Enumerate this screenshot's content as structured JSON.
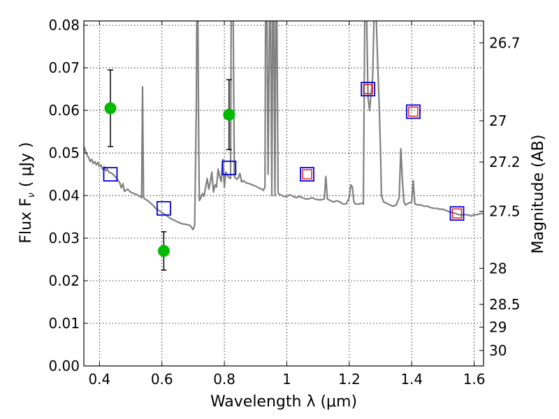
{
  "chart_data": {
    "type": "scatter",
    "xlabel": "Wavelength  λ (μm)",
    "ylabel": "Flux  F",
    "ylabel_sub": "ν",
    "ylabel_unit": "( μJy )",
    "y2label": "Magnitude (AB)",
    "xlim": [
      0.35,
      1.63
    ],
    "ylim": [
      0.0,
      0.081
    ],
    "x_ticks": [
      0.4,
      0.6,
      0.8,
      1.0,
      1.2,
      1.4,
      1.6
    ],
    "x_tick_labels": [
      "0.4",
      "0.6",
      "0.8",
      "1",
      "1.2",
      "1.4",
      "1.6"
    ],
    "y_ticks": [
      0.0,
      0.01,
      0.02,
      0.03,
      0.04,
      0.05,
      0.06,
      0.07,
      0.08
    ],
    "y_tick_labels": [
      "0.00",
      "0.01",
      "0.02",
      "0.03",
      "0.04",
      "0.05",
      "0.06",
      "0.07",
      "0.08"
    ],
    "y2_ticks": [
      {
        "mag": 26.7,
        "label": "26.7"
      },
      {
        "mag": 27.0,
        "label": "27"
      },
      {
        "mag": 27.2,
        "label": "27.2"
      },
      {
        "mag": 27.5,
        "label": "27.5"
      },
      {
        "mag": 28.0,
        "label": "28"
      },
      {
        "mag": 28.5,
        "label": "28.5"
      },
      {
        "mag": 29.0,
        "label": "29"
      },
      {
        "mag": 30.0,
        "label": "30"
      }
    ],
    "grid": true,
    "colors": {
      "spectrum": "#808080",
      "observed": "#00bb00",
      "model_box": "#0000dd",
      "model_inner": "#e02020",
      "error_bar": "#000000"
    },
    "series": [
      {
        "kind": "model_spectrum",
        "points": [
          [
            0.35,
            0.0515
          ],
          [
            0.355,
            0.0505
          ],
          [
            0.36,
            0.0495
          ],
          [
            0.365,
            0.049
          ],
          [
            0.37,
            0.048
          ],
          [
            0.375,
            0.0485
          ],
          [
            0.38,
            0.0475
          ],
          [
            0.385,
            0.048
          ],
          [
            0.39,
            0.0472
          ],
          [
            0.395,
            0.0478
          ],
          [
            0.4,
            0.0468
          ],
          [
            0.405,
            0.0472
          ],
          [
            0.41,
            0.0462
          ],
          [
            0.415,
            0.0468
          ],
          [
            0.42,
            0.0458
          ],
          [
            0.425,
            0.0462
          ],
          [
            0.43,
            0.0455
          ],
          [
            0.44,
            0.0452
          ],
          [
            0.45,
            0.0445
          ],
          [
            0.46,
            0.0435
          ],
          [
            0.465,
            0.043
          ],
          [
            0.47,
            0.0418
          ],
          [
            0.475,
            0.0428
          ],
          [
            0.48,
            0.041
          ],
          [
            0.49,
            0.0415
          ],
          [
            0.5,
            0.0408
          ],
          [
            0.51,
            0.0405
          ],
          [
            0.52,
            0.0402
          ],
          [
            0.53,
            0.0398
          ],
          [
            0.535,
            0.0395
          ],
          [
            0.538,
            0.0655
          ],
          [
            0.541,
            0.0395
          ],
          [
            0.55,
            0.039
          ],
          [
            0.56,
            0.0385
          ],
          [
            0.57,
            0.0378
          ],
          [
            0.58,
            0.037
          ],
          [
            0.59,
            0.0365
          ],
          [
            0.6,
            0.036
          ],
          [
            0.61,
            0.0355
          ],
          [
            0.62,
            0.035
          ],
          [
            0.63,
            0.0345
          ],
          [
            0.64,
            0.0342
          ],
          [
            0.65,
            0.0338
          ],
          [
            0.66,
            0.0335
          ],
          [
            0.67,
            0.0333
          ],
          [
            0.68,
            0.0332
          ],
          [
            0.69,
            0.033
          ],
          [
            0.7,
            0.032
          ],
          [
            0.705,
            0.033
          ],
          [
            0.71,
            0.06
          ],
          [
            0.712,
            0.085
          ],
          [
            0.715,
            0.085
          ],
          [
            0.718,
            0.05
          ],
          [
            0.72,
            0.0388
          ],
          [
            0.725,
            0.0395
          ],
          [
            0.73,
            0.0405
          ],
          [
            0.735,
            0.0398
          ],
          [
            0.74,
            0.042
          ],
          [
            0.745,
            0.044
          ],
          [
            0.75,
            0.0415
          ],
          [
            0.755,
            0.0432
          ],
          [
            0.76,
            0.0455
          ],
          [
            0.765,
            0.0408
          ],
          [
            0.77,
            0.0425
          ],
          [
            0.775,
            0.042
          ],
          [
            0.78,
            0.0462
          ],
          [
            0.785,
            0.0445
          ],
          [
            0.79,
            0.0433
          ],
          [
            0.795,
            0.0485
          ],
          [
            0.8,
            0.042
          ],
          [
            0.805,
            0.0455
          ],
          [
            0.81,
            0.0448
          ],
          [
            0.815,
            0.0442
          ],
          [
            0.82,
            0.044
          ],
          [
            0.822,
            0.085
          ],
          [
            0.825,
            0.085
          ],
          [
            0.828,
            0.085
          ],
          [
            0.832,
            0.0445
          ],
          [
            0.84,
            0.0438
          ],
          [
            0.845,
            0.0442
          ],
          [
            0.85,
            0.0452
          ],
          [
            0.855,
            0.0432
          ],
          [
            0.86,
            0.0435
          ],
          [
            0.87,
            0.043
          ],
          [
            0.88,
            0.0428
          ],
          [
            0.89,
            0.0425
          ],
          [
            0.9,
            0.0422
          ],
          [
            0.91,
            0.0418
          ],
          [
            0.92,
            0.0415
          ],
          [
            0.925,
            0.0412
          ],
          [
            0.93,
            0.042
          ],
          [
            0.932,
            0.085
          ],
          [
            0.936,
            0.085
          ],
          [
            0.94,
            0.045
          ],
          [
            0.945,
            0.085
          ],
          [
            0.948,
            0.085
          ],
          [
            0.952,
            0.04
          ],
          [
            0.955,
            0.085
          ],
          [
            0.958,
            0.085
          ],
          [
            0.962,
            0.04
          ],
          [
            0.965,
            0.085
          ],
          [
            0.968,
            0.085
          ],
          [
            0.972,
            0.0405
          ],
          [
            0.98,
            0.0402
          ],
          [
            0.99,
            0.0398
          ],
          [
            1.0,
            0.0398
          ],
          [
            1.01,
            0.0402
          ],
          [
            1.02,
            0.0398
          ],
          [
            1.03,
            0.0395
          ],
          [
            1.04,
            0.0398
          ],
          [
            1.05,
            0.0395
          ],
          [
            1.06,
            0.0392
          ],
          [
            1.07,
            0.0392
          ],
          [
            1.08,
            0.0395
          ],
          [
            1.09,
            0.0392
          ],
          [
            1.1,
            0.039
          ],
          [
            1.11,
            0.039
          ],
          [
            1.12,
            0.0392
          ],
          [
            1.125,
            0.0445
          ],
          [
            1.13,
            0.0392
          ],
          [
            1.14,
            0.0388
          ],
          [
            1.15,
            0.0385
          ],
          [
            1.16,
            0.0388
          ],
          [
            1.17,
            0.0385
          ],
          [
            1.18,
            0.038
          ],
          [
            1.19,
            0.038
          ],
          [
            1.2,
            0.0395
          ],
          [
            1.205,
            0.0425
          ],
          [
            1.21,
            0.042
          ],
          [
            1.215,
            0.0385
          ],
          [
            1.22,
            0.038
          ],
          [
            1.23,
            0.038
          ],
          [
            1.24,
            0.0382
          ],
          [
            1.245,
            0.038
          ],
          [
            1.25,
            0.085
          ],
          [
            1.255,
            0.085
          ],
          [
            1.26,
            0.063
          ],
          [
            1.265,
            0.06
          ],
          [
            1.27,
            0.064
          ],
          [
            1.275,
            0.068
          ],
          [
            1.28,
            0.085
          ],
          [
            1.285,
            0.085
          ],
          [
            1.29,
            0.073
          ],
          [
            1.295,
            0.063
          ],
          [
            1.3,
            0.051
          ],
          [
            1.303,
            0.04
          ],
          [
            1.31,
            0.0385
          ],
          [
            1.32,
            0.0382
          ],
          [
            1.33,
            0.0378
          ],
          [
            1.34,
            0.0375
          ],
          [
            1.35,
            0.0378
          ],
          [
            1.36,
            0.0395
          ],
          [
            1.365,
            0.051
          ],
          [
            1.37,
            0.044
          ],
          [
            1.375,
            0.0385
          ],
          [
            1.38,
            0.0378
          ],
          [
            1.39,
            0.0382
          ],
          [
            1.4,
            0.0385
          ],
          [
            1.405,
            0.0435
          ],
          [
            1.41,
            0.038
          ],
          [
            1.42,
            0.0378
          ],
          [
            1.43,
            0.0378
          ],
          [
            1.44,
            0.0375
          ],
          [
            1.45,
            0.0375
          ],
          [
            1.46,
            0.0372
          ],
          [
            1.47,
            0.037
          ],
          [
            1.48,
            0.037
          ],
          [
            1.49,
            0.0368
          ],
          [
            1.5,
            0.0368
          ],
          [
            1.51,
            0.0365
          ],
          [
            1.52,
            0.0362
          ],
          [
            1.53,
            0.036
          ],
          [
            1.54,
            0.0358
          ],
          [
            1.55,
            0.0355
          ],
          [
            1.56,
            0.0355
          ],
          [
            1.57,
            0.0355
          ],
          [
            1.58,
            0.0355
          ],
          [
            1.59,
            0.0352
          ],
          [
            1.6,
            0.0355
          ],
          [
            1.61,
            0.0355
          ],
          [
            1.62,
            0.0358
          ],
          [
            1.63,
            0.0358
          ]
        ]
      },
      {
        "kind": "observed_photometry",
        "points": [
          {
            "x": 0.435,
            "y": 0.0605,
            "err_low": 0.0515,
            "err_high": 0.0695
          },
          {
            "x": 0.606,
            "y": 0.027,
            "err_low": 0.0225,
            "err_high": 0.0315
          },
          {
            "x": 0.815,
            "y": 0.059,
            "err_low": 0.0508,
            "err_high": 0.0672
          }
        ]
      },
      {
        "kind": "model_photometry",
        "points": [
          {
            "x": 0.435,
            "y": 0.045,
            "inner": false
          },
          {
            "x": 0.606,
            "y": 0.037,
            "inner": false
          },
          {
            "x": 0.815,
            "y": 0.0465,
            "inner": false
          },
          {
            "x": 1.065,
            "y": 0.045,
            "inner": true
          },
          {
            "x": 1.26,
            "y": 0.065,
            "inner": true
          },
          {
            "x": 1.405,
            "y": 0.0597,
            "inner": true
          },
          {
            "x": 1.545,
            "y": 0.0358,
            "inner": true
          }
        ]
      }
    ]
  }
}
